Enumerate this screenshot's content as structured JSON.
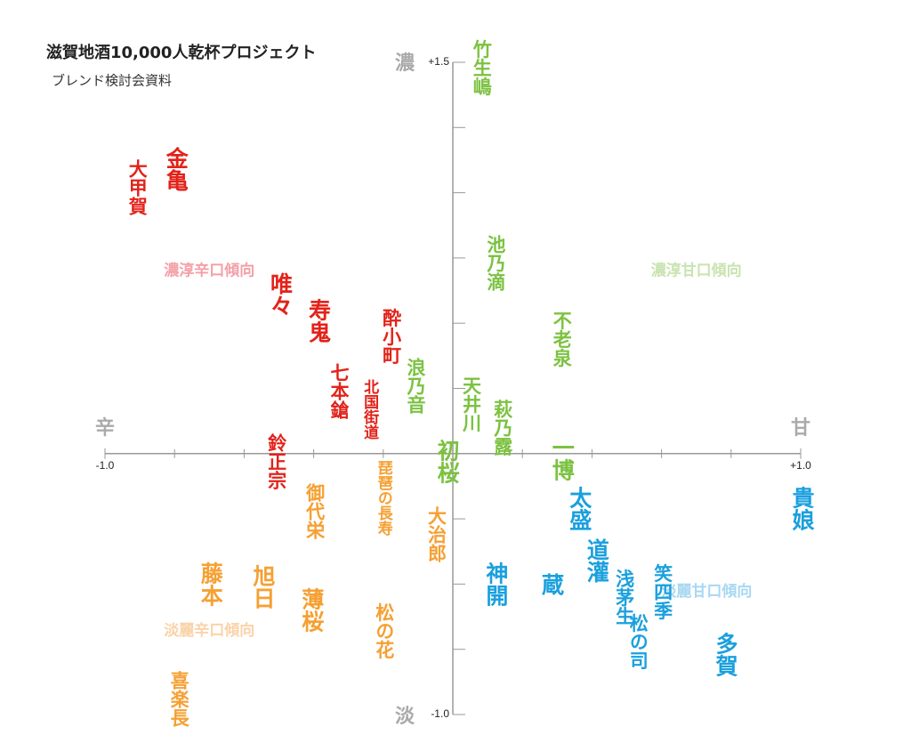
{
  "chart_data": {
    "type": "scatter",
    "title": "滋賀地酒10,000人乾杯プロジェクト",
    "subtitle": "ブレンド検討会資料",
    "axis_ends": {
      "top": "濃",
      "bottom": "淡",
      "left": "辛",
      "right": "甘"
    },
    "quadrants": [
      {
        "label": "濃淳辛口傾向",
        "color": "#f4a0a6",
        "x": -0.7,
        "y": 0.7
      },
      {
        "label": "濃淳甘口傾向",
        "color": "#c9e3b0",
        "x": 0.7,
        "y": 0.7
      },
      {
        "label": "淡麗辛口傾向",
        "color": "#f9d3a8",
        "x": -0.7,
        "y": -0.68
      },
      {
        "label": "淡麗甘口傾向",
        "color": "#a8d8f2",
        "x": 0.73,
        "y": -0.53
      }
    ],
    "xlim": [
      -1.0,
      1.0
    ],
    "ylim": [
      -1.0,
      1.5
    ],
    "xticks": [
      {
        "value": -1.0,
        "label": "-1.0"
      },
      {
        "value": 1.0,
        "label": "+1.0"
      }
    ],
    "yticks": [
      {
        "value": 1.5,
        "label": "+1.5"
      },
      {
        "value": -1.0,
        "label": "-1.0"
      }
    ],
    "minor_xticks": [
      -0.8,
      -0.6,
      -0.4,
      -0.2,
      0.2,
      0.4,
      0.6,
      0.8
    ],
    "minor_yticks": [
      -0.75,
      -0.5,
      -0.25,
      0.25,
      0.5,
      0.75,
      1.0,
      1.25
    ],
    "points": [
      {
        "label": "竹生嶋",
        "x": 0.08,
        "y": 1.48,
        "color": "#7cc241"
      },
      {
        "label": "金亀",
        "x": -0.8,
        "y": 1.09,
        "color": "#e2231a"
      },
      {
        "label": "大甲賀",
        "x": -0.91,
        "y": 1.02,
        "color": "#e2231a"
      },
      {
        "label": "池乃滴",
        "x": 0.12,
        "y": 0.73,
        "color": "#7cc241"
      },
      {
        "label": "唯々",
        "x": -0.5,
        "y": 0.61,
        "color": "#e2231a"
      },
      {
        "label": "寿鬼",
        "x": -0.39,
        "y": 0.51,
        "color": "#e2231a"
      },
      {
        "label": "酔小町",
        "x": -0.18,
        "y": 0.45,
        "color": "#e2231a"
      },
      {
        "label": "不老泉",
        "x": 0.31,
        "y": 0.44,
        "color": "#7cc241"
      },
      {
        "label": "七本鎗",
        "x": -0.33,
        "y": 0.24,
        "color": "#e2231a"
      },
      {
        "label": "北国街道",
        "x": -0.24,
        "y": 0.17,
        "color": "#e2231a"
      },
      {
        "label": "浪乃音",
        "x": -0.11,
        "y": 0.26,
        "color": "#7cc241"
      },
      {
        "label": "天井川",
        "x": 0.05,
        "y": 0.19,
        "color": "#7cc241"
      },
      {
        "label": "萩乃露",
        "x": 0.14,
        "y": 0.1,
        "color": "#7cc241"
      },
      {
        "label": "初桜",
        "x": -0.02,
        "y": -0.03,
        "color": "#7cc241"
      },
      {
        "label": "一博",
        "x": 0.31,
        "y": -0.02,
        "color": "#7cc241"
      },
      {
        "label": "鈴正宗",
        "x": -0.51,
        "y": -0.03,
        "color": "#e2231a"
      },
      {
        "label": "御代栄",
        "x": -0.4,
        "y": -0.22,
        "color": "#f5a033"
      },
      {
        "label": "琵琶の長寿",
        "x": -0.2,
        "y": -0.17,
        "color": "#f5a033"
      },
      {
        "label": "大治郎",
        "x": -0.05,
        "y": -0.31,
        "color": "#f5a033"
      },
      {
        "label": "藤本",
        "x": -0.7,
        "y": -0.5,
        "color": "#f5a033"
      },
      {
        "label": "旭日",
        "x": -0.55,
        "y": -0.51,
        "color": "#f5a033"
      },
      {
        "label": "薄桜",
        "x": -0.41,
        "y": -0.6,
        "color": "#f5a033"
      },
      {
        "label": "松の花",
        "x": -0.2,
        "y": -0.68,
        "color": "#f5a033"
      },
      {
        "label": "喜楽長",
        "x": -0.79,
        "y": -0.94,
        "color": "#f5a033"
      },
      {
        "label": "太盛",
        "x": 0.36,
        "y": -0.21,
        "color": "#1ba0de"
      },
      {
        "label": "神開",
        "x": 0.12,
        "y": -0.5,
        "color": "#1ba0de"
      },
      {
        "label": "蔵",
        "x": 0.28,
        "y": -0.5,
        "color": "#1ba0de"
      },
      {
        "label": "道灌",
        "x": 0.41,
        "y": -0.41,
        "color": "#1ba0de"
      },
      {
        "label": "浅茅生",
        "x": 0.49,
        "y": -0.55,
        "color": "#1ba0de"
      },
      {
        "label": "笑四季",
        "x": 0.6,
        "y": -0.53,
        "color": "#1ba0de"
      },
      {
        "label": "松の司",
        "x": 0.53,
        "y": -0.72,
        "color": "#1ba0de"
      },
      {
        "label": "多賀",
        "x": 0.78,
        "y": -0.77,
        "color": "#1ba0de"
      },
      {
        "label": "貴娘",
        "x": 1.0,
        "y": -0.21,
        "color": "#1ba0de"
      }
    ]
  }
}
